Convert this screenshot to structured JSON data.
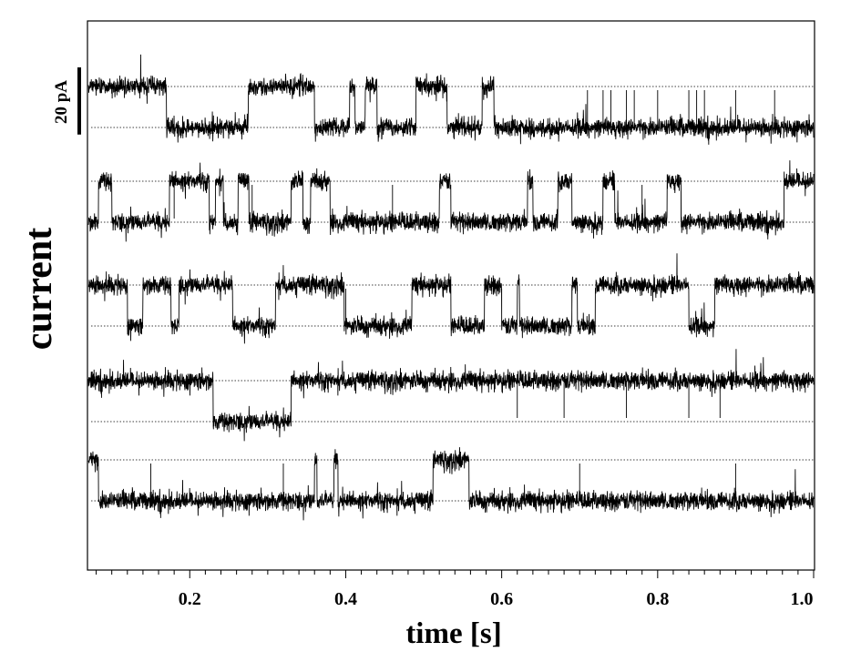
{
  "chart_data": {
    "type": "line",
    "xlabel": "time [s]",
    "ylabel": "current",
    "xlim": [
      0.07,
      1.0
    ],
    "xticks_major": [
      0.2,
      0.4,
      0.6,
      0.8,
      1.0
    ],
    "xtick_labels": [
      "0.2",
      "0.4",
      "0.6",
      "0.8",
      "1.0"
    ],
    "xticks_minor_step": 0.02,
    "scale_bar": {
      "label": "20 pA",
      "value_pA": 20
    },
    "open_close_difference_pA": 20,
    "noise_pA": 2.2,
    "grid": false,
    "reference_lines": "dotted, at high and low current level of each trace",
    "series": [
      {
        "segments": [
          [
            0.07,
            0.17,
            "H"
          ],
          [
            0.17,
            0.18,
            "L"
          ],
          [
            0.18,
            0.275,
            "L"
          ],
          [
            0.275,
            0.285,
            "H"
          ],
          [
            0.285,
            0.36,
            "H"
          ],
          [
            0.36,
            0.405,
            "L"
          ],
          [
            0.405,
            0.412,
            "H"
          ],
          [
            0.412,
            0.425,
            "L"
          ],
          [
            0.425,
            0.44,
            "H"
          ],
          [
            0.44,
            0.49,
            "L"
          ],
          [
            0.49,
            0.53,
            "H"
          ],
          [
            0.53,
            0.575,
            "L"
          ],
          [
            0.575,
            0.59,
            "H"
          ],
          [
            0.59,
            1.0,
            "L"
          ]
        ],
        "spikes": [
          0.71,
          0.73,
          0.74,
          0.76,
          0.77,
          0.8,
          0.84,
          0.85,
          0.86,
          0.9,
          0.95
        ]
      },
      {
        "segments": [
          [
            0.07,
            0.083,
            "L"
          ],
          [
            0.083,
            0.1,
            "H"
          ],
          [
            0.1,
            0.174,
            "L"
          ],
          [
            0.174,
            0.225,
            "H"
          ],
          [
            0.225,
            0.233,
            "L"
          ],
          [
            0.233,
            0.243,
            "H"
          ],
          [
            0.243,
            0.262,
            "L"
          ],
          [
            0.262,
            0.276,
            "H"
          ],
          [
            0.276,
            0.33,
            "L"
          ],
          [
            0.33,
            0.345,
            "H"
          ],
          [
            0.345,
            0.355,
            "L"
          ],
          [
            0.355,
            0.38,
            "H"
          ],
          [
            0.38,
            0.52,
            "L"
          ],
          [
            0.52,
            0.535,
            "H"
          ],
          [
            0.535,
            0.633,
            "L"
          ],
          [
            0.633,
            0.64,
            "H"
          ],
          [
            0.64,
            0.672,
            "L"
          ],
          [
            0.672,
            0.69,
            "H"
          ],
          [
            0.69,
            0.73,
            "L"
          ],
          [
            0.73,
            0.745,
            "H"
          ],
          [
            0.745,
            0.812,
            "L"
          ],
          [
            0.812,
            0.83,
            "H"
          ],
          [
            0.83,
            0.962,
            "L"
          ],
          [
            0.962,
            1.0,
            "H"
          ]
        ],
        "spikes": [
          0.18,
          0.28,
          0.46,
          0.78,
          0.83
        ]
      },
      {
        "segments": [
          [
            0.07,
            0.12,
            "H"
          ],
          [
            0.12,
            0.14,
            "L"
          ],
          [
            0.14,
            0.176,
            "H"
          ],
          [
            0.176,
            0.186,
            "L"
          ],
          [
            0.186,
            0.255,
            "H"
          ],
          [
            0.255,
            0.31,
            "L"
          ],
          [
            0.31,
            0.398,
            "H"
          ],
          [
            0.398,
            0.485,
            "L"
          ],
          [
            0.485,
            0.535,
            "H"
          ],
          [
            0.535,
            0.578,
            "L"
          ],
          [
            0.578,
            0.6,
            "H"
          ],
          [
            0.6,
            0.62,
            "L"
          ],
          [
            0.62,
            0.623,
            "H"
          ],
          [
            0.623,
            0.69,
            "L"
          ],
          [
            0.69,
            0.697,
            "H"
          ],
          [
            0.697,
            0.72,
            "L"
          ],
          [
            0.72,
            0.84,
            "H"
          ],
          [
            0.84,
            0.873,
            "L"
          ],
          [
            0.873,
            1.0,
            "H"
          ]
        ],
        "spikes": [
          0.4,
          0.6,
          0.69
        ]
      },
      {
        "segments": [
          [
            0.07,
            0.23,
            "H"
          ],
          [
            0.23,
            0.33,
            "L"
          ],
          [
            0.33,
            1.0,
            "H"
          ]
        ],
        "spikes": [
          0.62,
          0.68,
          0.76,
          0.84,
          0.88
        ]
      },
      {
        "segments": [
          [
            0.07,
            0.083,
            "H"
          ],
          [
            0.083,
            0.36,
            "L"
          ],
          [
            0.36,
            0.363,
            "H"
          ],
          [
            0.363,
            0.385,
            "L"
          ],
          [
            0.385,
            0.39,
            "H"
          ],
          [
            0.39,
            0.512,
            "L"
          ],
          [
            0.512,
            0.558,
            "H"
          ],
          [
            0.558,
            1.0,
            "L"
          ]
        ],
        "spikes": [
          0.15,
          0.32,
          0.7,
          0.9
        ]
      }
    ]
  }
}
